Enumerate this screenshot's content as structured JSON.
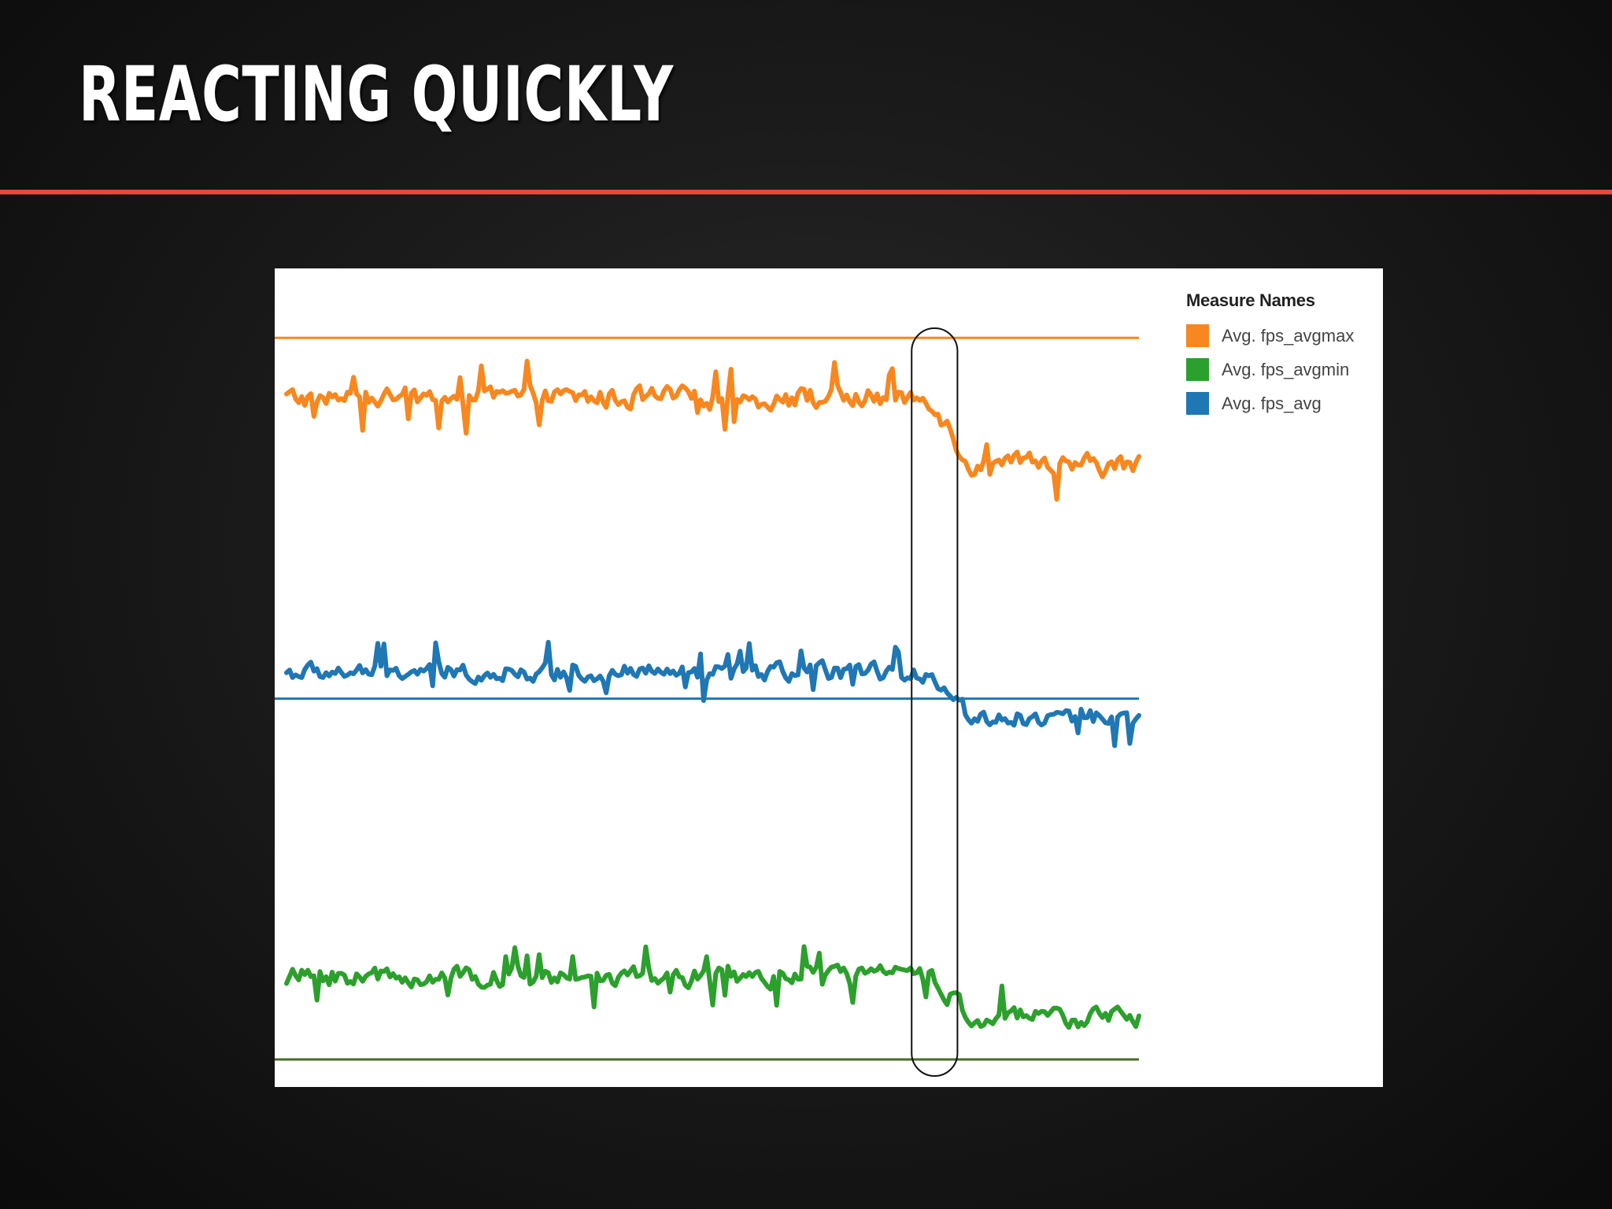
{
  "slide": {
    "title": "REACTING QUICKLY",
    "accent_color": "#e8473a"
  },
  "chart_data": {
    "type": "line",
    "legend_title": "Measure Names",
    "legend_position": "right",
    "grid": false,
    "x_axis_visible": false,
    "y_axis_visible": false,
    "series": [
      {
        "name": "Avg. fps_avgmax",
        "color": "#f7871e",
        "level_before": 0.88,
        "level_after": 0.79,
        "noise": 0.022,
        "reference_line": 0.96,
        "reference_color": "#f7871e"
      },
      {
        "name": "Avg. fps_avgmin",
        "color": "#2ca02c",
        "level_before": 0.11,
        "level_after": 0.055,
        "noise": 0.02,
        "reference_line": 0.0,
        "reference_color": "#4a6b26"
      },
      {
        "name": "Avg. fps_avg",
        "color": "#1f77b4",
        "level_before": 0.515,
        "level_after": 0.455,
        "noise": 0.018,
        "reference_line": 0.48,
        "reference_color": "#1f77b4"
      }
    ],
    "change_point_fraction": 0.775,
    "highlight": {
      "shape": "rounded-rectangle",
      "x_start_fraction": 0.737,
      "x_end_fraction": 0.79,
      "stroke": "#111111"
    }
  }
}
